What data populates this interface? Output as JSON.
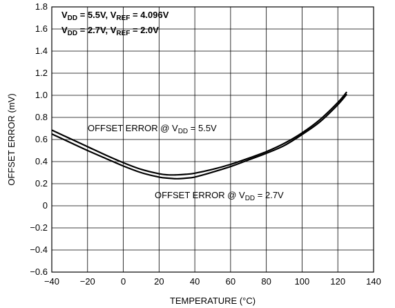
{
  "chart_data": {
    "type": "line",
    "title": "",
    "xlabel": "TEMPERATURE (°C)",
    "ylabel": "OFFSET ERROR (mV)",
    "xlim": [
      -40,
      140
    ],
    "ylim": [
      -0.6,
      1.8
    ],
    "x_ticks": [
      -40,
      -20,
      0,
      20,
      40,
      60,
      80,
      100,
      120,
      140
    ],
    "y_ticks": [
      -0.6,
      -0.4,
      -0.2,
      0,
      0.2,
      0.4,
      0.6,
      0.8,
      1.0,
      1.2,
      1.4,
      1.6,
      1.8
    ],
    "x_tick_labels": [
      "−40",
      "−20",
      "0",
      "20",
      "40",
      "60",
      "80",
      "100",
      "120",
      "140"
    ],
    "y_tick_labels": [
      "−0.6",
      "−0.4",
      "−0.2",
      "0",
      "0.2",
      "0.4",
      "0.6",
      "0.8",
      "1.0",
      "1.2",
      "1.4",
      "1.6",
      "1.8"
    ],
    "grid": true,
    "conditions": [
      {
        "p1": "V",
        "s1": "DD",
        "p2": " = 5.5V, V",
        "s2": "REF",
        "p3": " = 4.096V"
      },
      {
        "p1": "V",
        "s1": "DD",
        "p2": " = 2.7V, V",
        "s2": "REF",
        "p3": " = 2.0V"
      }
    ],
    "series": [
      {
        "label_prefix": "OFFSET ERROR @ V",
        "label_sub": "DD",
        "label_suffix": " = 5.5V",
        "x": [
          -40,
          -30,
          -20,
          -10,
          0,
          10,
          20,
          25,
          30,
          35,
          40,
          50,
          60,
          70,
          80,
          90,
          100,
          110,
          120,
          125
        ],
        "y": [
          0.685,
          0.61,
          0.535,
          0.46,
          0.39,
          0.33,
          0.29,
          0.28,
          0.28,
          0.285,
          0.295,
          0.33,
          0.375,
          0.43,
          0.49,
          0.565,
          0.66,
          0.78,
          0.935,
          1.03
        ]
      },
      {
        "label_prefix": "OFFSET ERROR @ V",
        "label_sub": "DD",
        "label_suffix": " = 2.7V",
        "x": [
          -40,
          -30,
          -20,
          -10,
          0,
          10,
          20,
          25,
          30,
          35,
          40,
          50,
          60,
          70,
          80,
          90,
          100,
          110,
          120,
          125
        ],
        "y": [
          0.65,
          0.575,
          0.5,
          0.43,
          0.36,
          0.3,
          0.26,
          0.25,
          0.245,
          0.25,
          0.26,
          0.305,
          0.355,
          0.415,
          0.475,
          0.545,
          0.645,
          0.76,
          0.915,
          1.01
        ]
      }
    ]
  }
}
